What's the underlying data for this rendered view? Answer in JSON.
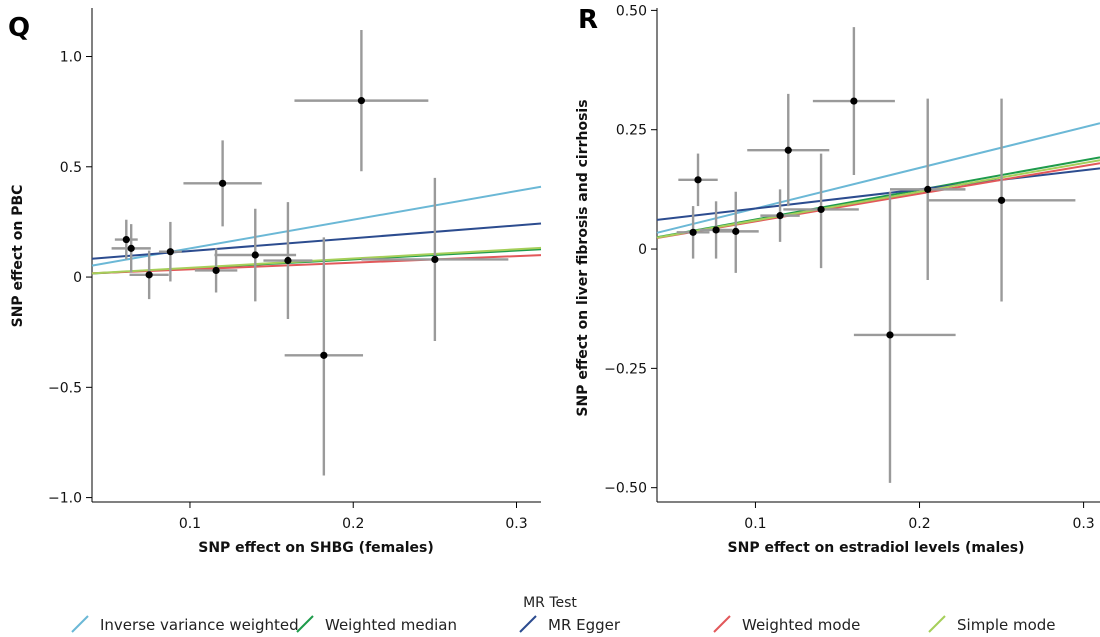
{
  "legend": {
    "title": "MR Test",
    "items": [
      {
        "label": "Inverse variance weighted",
        "color": "#6bb8d6"
      },
      {
        "label": "Weighted median",
        "color": "#1e9b4b"
      },
      {
        "label": "MR Egger",
        "color": "#2c4c8f"
      },
      {
        "label": "Weighted mode",
        "color": "#e2585a"
      },
      {
        "label": "Simple mode",
        "color": "#a6cf5a"
      }
    ]
  },
  "chart_data": [
    {
      "type": "scatter",
      "panel_label": "Q",
      "xlabel": "SNP effect on SHBG (females)",
      "ylabel": "SNP effect on PBC",
      "xlim": [
        0.04,
        0.315
      ],
      "ylim": [
        -1.02,
        1.22
      ],
      "xticks": [
        0.1,
        0.2,
        0.3
      ],
      "xtick_labels": [
        "0.1",
        "0.2",
        "0.3"
      ],
      "yticks": [
        -1.0,
        -0.5,
        0,
        0.5,
        1.0
      ],
      "ytick_labels": [
        "−1.0",
        "−0.5",
        "0",
        "0.5",
        "1.0"
      ],
      "points": [
        {
          "x": 0.061,
          "y": 0.17,
          "x_lo": 0.054,
          "x_hi": 0.068,
          "y_lo": 0.08,
          "y_hi": 0.26
        },
        {
          "x": 0.064,
          "y": 0.13,
          "x_lo": 0.052,
          "x_hi": 0.076,
          "y_lo": 0.02,
          "y_hi": 0.24
        },
        {
          "x": 0.075,
          "y": 0.01,
          "x_lo": 0.063,
          "x_hi": 0.087,
          "y_lo": -0.1,
          "y_hi": 0.12
        },
        {
          "x": 0.088,
          "y": 0.115,
          "x_lo": 0.081,
          "x_hi": 0.095,
          "y_lo": -0.02,
          "y_hi": 0.25
        },
        {
          "x": 0.116,
          "y": 0.03,
          "x_lo": 0.103,
          "x_hi": 0.129,
          "y_lo": -0.07,
          "y_hi": 0.13
        },
        {
          "x": 0.12,
          "y": 0.425,
          "x_lo": 0.096,
          "x_hi": 0.144,
          "y_lo": 0.23,
          "y_hi": 0.62
        },
        {
          "x": 0.14,
          "y": 0.1,
          "x_lo": 0.115,
          "x_hi": 0.165,
          "y_lo": -0.11,
          "y_hi": 0.31
        },
        {
          "x": 0.16,
          "y": 0.075,
          "x_lo": 0.145,
          "x_hi": 0.175,
          "y_lo": -0.19,
          "y_hi": 0.34
        },
        {
          "x": 0.182,
          "y": -0.355,
          "x_lo": 0.158,
          "x_hi": 0.206,
          "y_lo": -0.9,
          "y_hi": 0.18
        },
        {
          "x": 0.205,
          "y": 0.8,
          "x_lo": 0.164,
          "x_hi": 0.246,
          "y_lo": 0.48,
          "y_hi": 1.12
        },
        {
          "x": 0.25,
          "y": 0.08,
          "x_lo": 0.205,
          "x_hi": 0.295,
          "y_lo": -0.29,
          "y_hi": 0.45
        }
      ],
      "lines": [
        {
          "method": "Inverse variance weighted",
          "slope": 1.3,
          "intercept": 0.0
        },
        {
          "method": "Weighted median",
          "slope": 0.4,
          "intercept": 0.0
        },
        {
          "method": "MR Egger",
          "slope": 0.58,
          "intercept": 0.06
        },
        {
          "method": "Weighted mode",
          "slope": 0.3,
          "intercept": 0.005
        },
        {
          "method": "Simple mode",
          "slope": 0.42,
          "intercept": 0.0
        }
      ]
    },
    {
      "type": "scatter",
      "panel_label": "R",
      "xlabel": "SNP effect on estradiol levels (males)",
      "ylabel": "SNP effect on liver fibrosis and cirrhosis",
      "xlim": [
        0.04,
        0.31
      ],
      "ylim": [
        -0.53,
        0.505
      ],
      "xticks": [
        0.1,
        0.2,
        0.3
      ],
      "xtick_labels": [
        "0.1",
        "0.2",
        "0.3"
      ],
      "yticks": [
        -0.5,
        -0.25,
        0,
        0.25,
        0.5
      ],
      "ytick_labels": [
        "−0.50",
        "−0.25",
        "0",
        "0.25",
        "0.50"
      ],
      "points": [
        {
          "x": 0.062,
          "y": 0.035,
          "x_lo": 0.052,
          "x_hi": 0.072,
          "y_lo": -0.02,
          "y_hi": 0.09
        },
        {
          "x": 0.065,
          "y": 0.145,
          "x_lo": 0.053,
          "x_hi": 0.077,
          "y_lo": 0.09,
          "y_hi": 0.2
        },
        {
          "x": 0.076,
          "y": 0.04,
          "x_lo": 0.066,
          "x_hi": 0.086,
          "y_lo": -0.02,
          "y_hi": 0.1
        },
        {
          "x": 0.088,
          "y": 0.037,
          "x_lo": 0.074,
          "x_hi": 0.102,
          "y_lo": -0.05,
          "y_hi": 0.12
        },
        {
          "x": 0.115,
          "y": 0.07,
          "x_lo": 0.103,
          "x_hi": 0.127,
          "y_lo": 0.015,
          "y_hi": 0.125
        },
        {
          "x": 0.12,
          "y": 0.207,
          "x_lo": 0.095,
          "x_hi": 0.145,
          "y_lo": 0.09,
          "y_hi": 0.325
        },
        {
          "x": 0.14,
          "y": 0.083,
          "x_lo": 0.117,
          "x_hi": 0.163,
          "y_lo": -0.04,
          "y_hi": 0.2
        },
        {
          "x": 0.16,
          "y": 0.31,
          "x_lo": 0.135,
          "x_hi": 0.185,
          "y_lo": 0.155,
          "y_hi": 0.465
        },
        {
          "x": 0.182,
          "y": -0.18,
          "x_lo": 0.16,
          "x_hi": 0.222,
          "y_lo": -0.49,
          "y_hi": 0.12
        },
        {
          "x": 0.205,
          "y": 0.125,
          "x_lo": 0.182,
          "x_hi": 0.228,
          "y_lo": -0.065,
          "y_hi": 0.315
        },
        {
          "x": 0.25,
          "y": 0.102,
          "x_lo": 0.205,
          "x_hi": 0.295,
          "y_lo": -0.11,
          "y_hi": 0.315
        }
      ],
      "lines": [
        {
          "method": "Inverse variance weighted",
          "slope": 0.85,
          "intercept": 0.0
        },
        {
          "method": "Weighted median",
          "slope": 0.62,
          "intercept": 0.0
        },
        {
          "method": "MR Egger",
          "slope": 0.4,
          "intercept": 0.045
        },
        {
          "method": "Weighted mode",
          "slope": 0.58,
          "intercept": 0.0
        },
        {
          "method": "Simple mode",
          "slope": 0.6,
          "intercept": 0.0
        }
      ]
    }
  ]
}
